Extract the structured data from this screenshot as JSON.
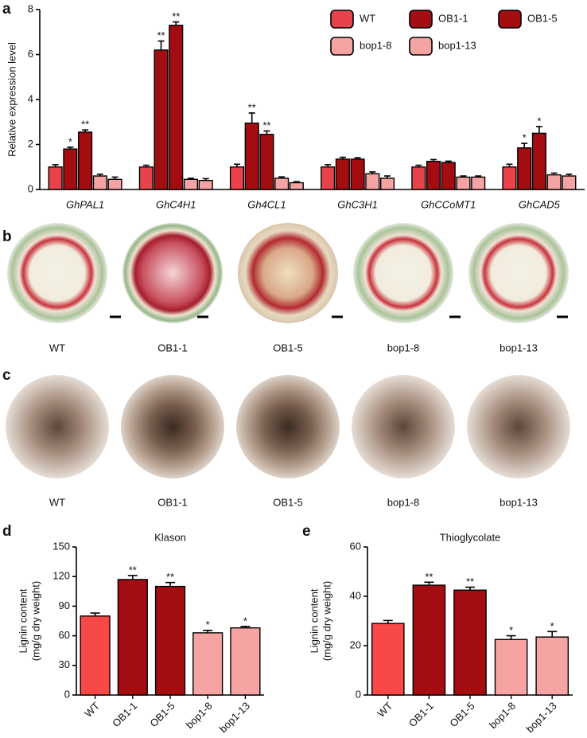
{
  "panel_labels": [
    "a",
    "b",
    "c",
    "d",
    "e"
  ],
  "photo_rows": [
    {
      "captions": [
        "WT",
        "OB1-1",
        "OB1-5",
        "bop1-8",
        "bop1-13"
      ]
    },
    {
      "captions": [
        "WT",
        "OB1-1",
        "OB1-5",
        "bop1-8",
        "bop1-13"
      ]
    }
  ],
  "chart_data": [
    {
      "type": "grouped-bar",
      "ylabel": "Relative expression level",
      "categories": [
        "GhPAL1",
        "GhC4H1",
        "Gh4CL1",
        "GhC3H1",
        "GhCCoMT1",
        "GhCAD5"
      ],
      "series": [
        {
          "name": "WT",
          "color": "#e8434a",
          "values": [
            1.0,
            1.0,
            1.0,
            1.0,
            1.0,
            1.0
          ],
          "errors": [
            0.1,
            0.08,
            0.12,
            0.1,
            0.08,
            0.12
          ],
          "significance": [
            null,
            null,
            null,
            null,
            null,
            null
          ]
        },
        {
          "name": "OB1-1",
          "color": "#a30d12",
          "values": [
            1.8,
            6.2,
            2.95,
            1.35,
            1.25,
            1.85
          ],
          "errors": [
            0.08,
            0.4,
            0.45,
            0.08,
            0.08,
            0.2
          ],
          "significance": [
            "*",
            "**",
            "**",
            null,
            null,
            "*"
          ]
        },
        {
          "name": "OB1-5",
          "color": "#a30d12",
          "values": [
            2.55,
            7.3,
            2.45,
            1.35,
            1.2,
            2.5
          ],
          "errors": [
            0.1,
            0.15,
            0.15,
            0.06,
            0.06,
            0.3
          ],
          "significance": [
            "**",
            "**",
            "**",
            null,
            null,
            "*"
          ]
        },
        {
          "name": "bop1-8",
          "color": "#f5a3a3",
          "values": [
            0.6,
            0.45,
            0.5,
            0.7,
            0.55,
            0.65
          ],
          "errors": [
            0.08,
            0.05,
            0.06,
            0.08,
            0.05,
            0.08
          ],
          "significance": [
            null,
            null,
            null,
            null,
            null,
            null
          ]
        },
        {
          "name": "bop1-13",
          "color": "#f5a3a3",
          "values": [
            0.45,
            0.4,
            0.3,
            0.5,
            0.55,
            0.6
          ],
          "errors": [
            0.1,
            0.08,
            0.05,
            0.1,
            0.05,
            0.08
          ],
          "significance": [
            null,
            null,
            null,
            null,
            null,
            null
          ]
        }
      ],
      "ylim": [
        0,
        8
      ],
      "yticks": [
        0,
        2,
        4,
        6,
        8
      ],
      "category_style": "italic"
    },
    {
      "type": "bar",
      "title": "Klason",
      "ylabel": [
        "Lignin content",
        "(mg/g dry weight)"
      ],
      "categories": [
        "WT",
        "OB1-1",
        "OB1-5",
        "bop1-8",
        "bop1-13"
      ],
      "values": [
        80,
        117,
        110,
        63,
        68
      ],
      "errors": [
        3,
        4,
        4,
        2.5,
        1.5
      ],
      "colors": [
        "#f94848",
        "#a30d12",
        "#a30d12",
        "#f5a3a3",
        "#f5a3a3"
      ],
      "significance": [
        null,
        "**",
        "**",
        "*",
        "*"
      ],
      "ylim": [
        0,
        150
      ],
      "yticks": [
        0,
        30,
        60,
        90,
        120,
        150
      ]
    },
    {
      "type": "bar",
      "title": "Thioglycolate",
      "ylabel": [
        "Lignin content",
        "(mg/g dry weight)"
      ],
      "categories": [
        "WT",
        "OB1-1",
        "OB1-5",
        "bop1-8",
        "bop1-13"
      ],
      "values": [
        29,
        44.5,
        42.5,
        22.5,
        23.5
      ],
      "errors": [
        1.2,
        1.2,
        1.2,
        1.5,
        2.2
      ],
      "colors": [
        "#f94848",
        "#a30d12",
        "#a30d12",
        "#f5a3a3",
        "#f5a3a3"
      ],
      "significance": [
        null,
        "**",
        "**",
        "*",
        "*"
      ],
      "ylim": [
        0,
        60
      ],
      "yticks": [
        0,
        20,
        40,
        60
      ]
    }
  ]
}
